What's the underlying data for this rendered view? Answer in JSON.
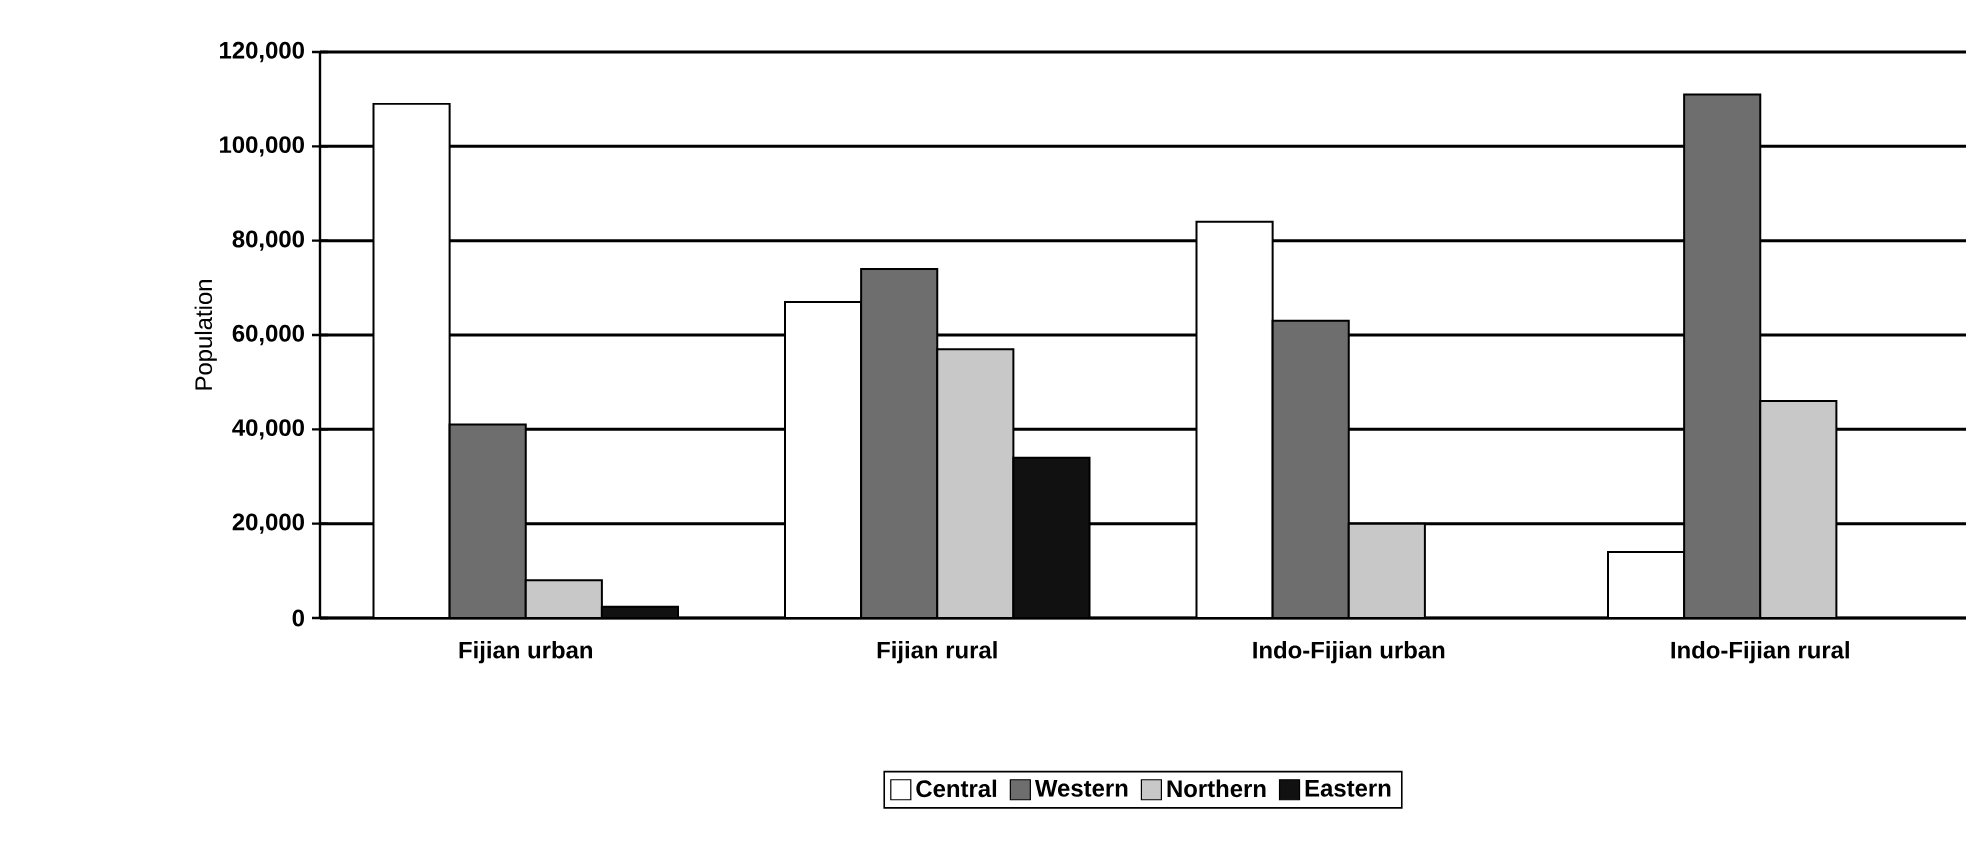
{
  "chart_data": {
    "type": "bar",
    "ylabel": "Population",
    "categories": [
      "Fijian urban",
      "Fijian rural",
      "Indo-Fijian urban",
      "Indo-Fijian rural"
    ],
    "series": [
      {
        "name": "Central",
        "color": "#ffffff",
        "values": [
          109000,
          67000,
          84000,
          14000
        ]
      },
      {
        "name": "Western",
        "color": "#6e6e6e",
        "values": [
          41000,
          74000,
          63000,
          111000
        ]
      },
      {
        "name": "Northern",
        "color": "#c8c8c8",
        "values": [
          8000,
          57000,
          20000,
          46000
        ]
      },
      {
        "name": "Eastern",
        "color": "#111111",
        "values": [
          2400,
          34000,
          null,
          null
        ]
      }
    ],
    "ylim": [
      0,
      120000
    ],
    "yticks": [
      0,
      {
        "value": 20000,
        "label": "20,000"
      },
      {
        "value": 40000,
        "label": "40,000"
      },
      {
        "value": 60000,
        "label": "60,000"
      },
      {
        "value": 80000,
        "label": "80,000"
      },
      {
        "value": 100000,
        "label": "100,000"
      },
      {
        "value": 120000,
        "label": "120,000"
      }
    ],
    "grid": "y",
    "legend": "bottom"
  }
}
